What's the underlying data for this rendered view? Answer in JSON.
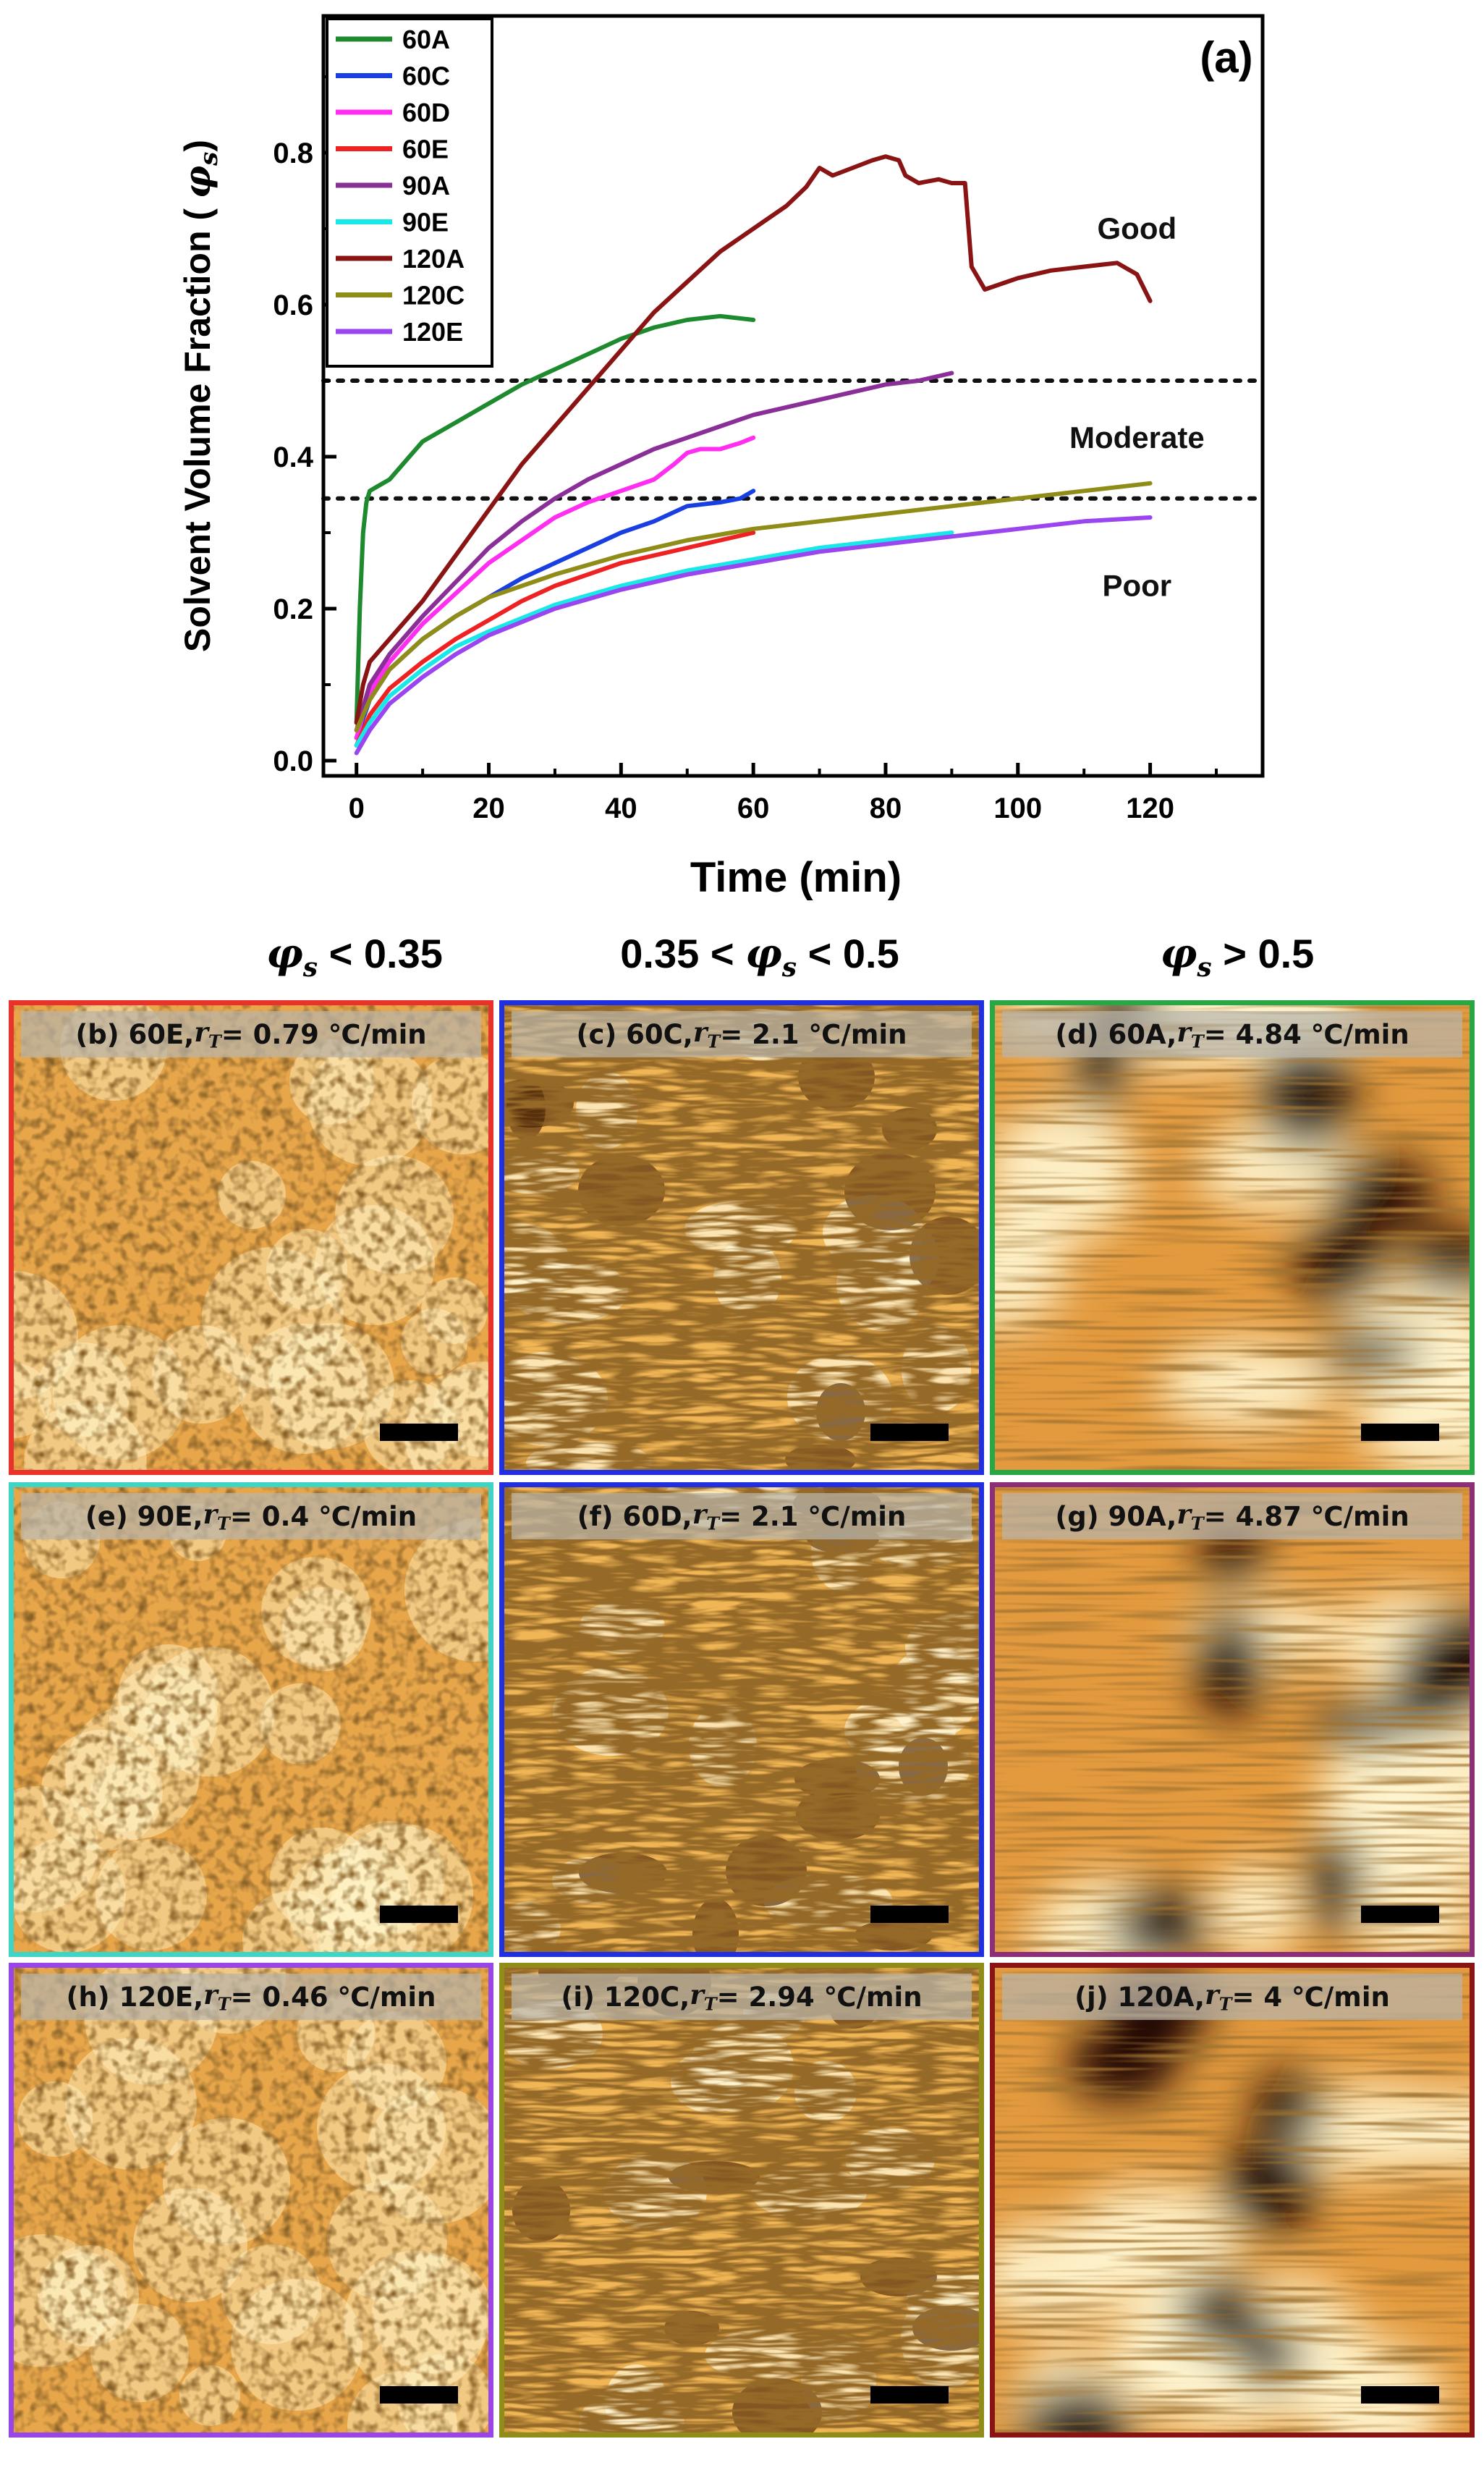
{
  "chart_data": {
    "type": "line",
    "panel_label": "(a)",
    "xlabel": "Time (min)",
    "ylabel": "Solvent Volume Fraction (φs)",
    "xlim": [
      -5,
      137
    ],
    "ylim": [
      -0.02,
      0.98
    ],
    "xticks": [
      0,
      20,
      40,
      60,
      80,
      100,
      120
    ],
    "yticks": [
      0.0,
      0.2,
      0.4,
      0.6,
      0.8
    ],
    "ytick_labels": [
      "0.0",
      "0.2",
      "0.4",
      "0.6",
      "0.8"
    ],
    "thresholds": [
      0.5,
      0.345
    ],
    "region_labels": [
      {
        "text": "Good",
        "x": 118,
        "y": 0.7
      },
      {
        "text": "Moderate",
        "x": 118,
        "y": 0.425
      },
      {
        "text": "Poor",
        "x": 118,
        "y": 0.23
      }
    ],
    "series": [
      {
        "name": "60A",
        "color": "#1e8a2e",
        "x": [
          0,
          0.5,
          1,
          1.5,
          2,
          3,
          5,
          8,
          10,
          15,
          20,
          25,
          30,
          35,
          40,
          45,
          50,
          55,
          60
        ],
        "y": [
          0.05,
          0.2,
          0.3,
          0.34,
          0.355,
          0.36,
          0.37,
          0.4,
          0.42,
          0.445,
          0.47,
          0.495,
          0.515,
          0.535,
          0.555,
          0.57,
          0.58,
          0.585,
          0.58
        ]
      },
      {
        "name": "60C",
        "color": "#1a3fe0",
        "x": [
          0,
          2,
          5,
          10,
          15,
          20,
          25,
          30,
          35,
          40,
          45,
          50,
          55,
          58,
          60
        ],
        "y": [
          0.03,
          0.08,
          0.12,
          0.16,
          0.19,
          0.215,
          0.24,
          0.26,
          0.28,
          0.3,
          0.315,
          0.335,
          0.34,
          0.345,
          0.355
        ]
      },
      {
        "name": "60D",
        "color": "#ff2ef0",
        "x": [
          0,
          2,
          5,
          10,
          15,
          20,
          25,
          30,
          35,
          40,
          45,
          48,
          50,
          52,
          55,
          58,
          60
        ],
        "y": [
          0.03,
          0.09,
          0.13,
          0.18,
          0.22,
          0.26,
          0.29,
          0.32,
          0.34,
          0.355,
          0.37,
          0.39,
          0.405,
          0.41,
          0.41,
          0.418,
          0.425
        ]
      },
      {
        "name": "60E",
        "color": "#ee2222",
        "x": [
          0,
          2,
          5,
          10,
          15,
          20,
          25,
          30,
          35,
          40,
          45,
          50,
          55,
          60
        ],
        "y": [
          0.02,
          0.06,
          0.095,
          0.13,
          0.16,
          0.185,
          0.21,
          0.23,
          0.245,
          0.26,
          0.27,
          0.28,
          0.29,
          0.3
        ]
      },
      {
        "name": "90A",
        "color": "#8a2f98",
        "x": [
          0,
          2,
          5,
          10,
          15,
          20,
          25,
          30,
          35,
          40,
          45,
          50,
          55,
          60,
          65,
          70,
          75,
          80,
          85,
          90
        ],
        "y": [
          0.04,
          0.1,
          0.14,
          0.19,
          0.235,
          0.28,
          0.315,
          0.345,
          0.37,
          0.39,
          0.41,
          0.425,
          0.44,
          0.455,
          0.465,
          0.475,
          0.485,
          0.495,
          0.5,
          0.51
        ]
      },
      {
        "name": "90E",
        "color": "#18e8e8",
        "x": [
          0,
          2,
          5,
          10,
          15,
          20,
          30,
          40,
          50,
          60,
          70,
          80,
          90
        ],
        "y": [
          0.02,
          0.05,
          0.085,
          0.12,
          0.15,
          0.17,
          0.205,
          0.23,
          0.25,
          0.265,
          0.28,
          0.29,
          0.3
        ]
      },
      {
        "name": "120A",
        "color": "#8a1414",
        "x": [
          0,
          1,
          2,
          5,
          10,
          15,
          20,
          25,
          30,
          35,
          40,
          45,
          50,
          55,
          60,
          65,
          68,
          70,
          72,
          75,
          78,
          80,
          82,
          83,
          85,
          88,
          90,
          92,
          93,
          95,
          100,
          105,
          110,
          115,
          118,
          120
        ],
        "y": [
          0.05,
          0.1,
          0.13,
          0.16,
          0.21,
          0.27,
          0.33,
          0.39,
          0.44,
          0.49,
          0.54,
          0.59,
          0.63,
          0.67,
          0.7,
          0.73,
          0.755,
          0.78,
          0.77,
          0.78,
          0.79,
          0.795,
          0.79,
          0.77,
          0.76,
          0.765,
          0.76,
          0.76,
          0.65,
          0.62,
          0.635,
          0.645,
          0.65,
          0.655,
          0.64,
          0.605
        ]
      },
      {
        "name": "120C",
        "color": "#8f8c18",
        "x": [
          0,
          2,
          5,
          10,
          15,
          20,
          30,
          40,
          50,
          60,
          70,
          80,
          90,
          100,
          110,
          120
        ],
        "y": [
          0.04,
          0.08,
          0.12,
          0.16,
          0.19,
          0.215,
          0.245,
          0.27,
          0.29,
          0.305,
          0.315,
          0.325,
          0.335,
          0.345,
          0.355,
          0.365
        ]
      },
      {
        "name": "120E",
        "color": "#9a45f0",
        "x": [
          0,
          2,
          5,
          10,
          15,
          20,
          30,
          40,
          50,
          60,
          70,
          80,
          90,
          100,
          110,
          120
        ],
        "y": [
          0.01,
          0.04,
          0.075,
          0.11,
          0.14,
          0.165,
          0.2,
          0.225,
          0.245,
          0.26,
          0.275,
          0.285,
          0.295,
          0.305,
          0.315,
          0.32
        ]
      }
    ]
  },
  "columns": [
    {
      "pre": "",
      "post": " < 0.35"
    },
    {
      "pre": "0.35 < ",
      "post": " < 0.5"
    },
    {
      "pre": "",
      "post": " > 0.5"
    }
  ],
  "panels": [
    {
      "id": "b",
      "label": "(b) 60E, ",
      "rate": " = 0.79 ℃/min",
      "border": "#e8322a",
      "style": "poor"
    },
    {
      "id": "c",
      "label": "(c) 60C, ",
      "rate": " = 2.1 ℃/min",
      "border": "#2030e0",
      "style": "moderate"
    },
    {
      "id": "d",
      "label": "(d) 60A, ",
      "rate": " = 4.84 ℃/min",
      "border": "#27a845",
      "style": "good"
    },
    {
      "id": "e",
      "label": "(e) 90E, ",
      "rate": " = 0.4 ℃/min",
      "border": "#3fd4c4",
      "style": "poor"
    },
    {
      "id": "f",
      "label": "(f) 60D, ",
      "rate": " = 2.1 ℃/min",
      "border": "#2030e0",
      "style": "moderate"
    },
    {
      "id": "g",
      "label": "(g) 90A, ",
      "rate": " = 4.87 ℃/min",
      "border": "#8a2f78",
      "style": "good"
    },
    {
      "id": "h",
      "label": "(h) 120E, ",
      "rate": " = 0.46 ℃/min",
      "border": "#9a45e8",
      "style": "poor"
    },
    {
      "id": "i",
      "label": "(i) 120C, ",
      "rate": " = 2.94 ℃/min",
      "border": "#8f8c18",
      "style": "moderate"
    },
    {
      "id": "j",
      "label": "(j) 120A, ",
      "rate": " = 4 ℃/min",
      "border": "#8a1414",
      "style": "good"
    }
  ]
}
